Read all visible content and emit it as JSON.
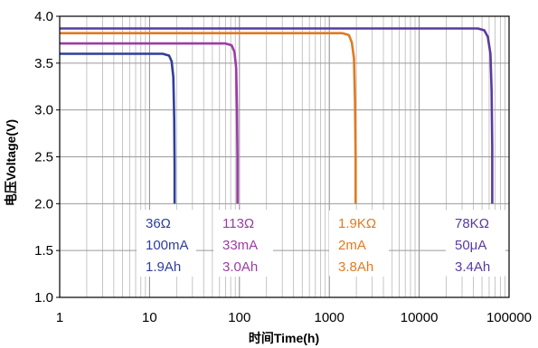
{
  "chart_data": {
    "type": "line",
    "title": "",
    "xlabel": "时间Time(h)",
    "ylabel": "电压Voltage(V)",
    "x_scale": "log",
    "xlim": [
      1,
      100000
    ],
    "ylim": [
      1.0,
      4.0
    ],
    "x_ticks": [
      1,
      10,
      100,
      1000,
      10000,
      100000
    ],
    "x_tick_labels": [
      "1",
      "10",
      "100",
      "1000",
      "10000",
      "100000"
    ],
    "y_ticks": [
      1.0,
      1.5,
      2.0,
      2.5,
      3.0,
      3.5,
      4.0
    ],
    "y_tick_labels": [
      "1.0",
      "1.5",
      "2.0",
      "2.5",
      "3.0",
      "3.5",
      "4.0"
    ],
    "grid": true,
    "series": [
      {
        "color": "#2e3e9c",
        "x": [
          1,
          14,
          16.5,
          17.6,
          18.4,
          18.8,
          19,
          19
        ],
        "y": [
          3.6,
          3.6,
          3.58,
          3.52,
          3.35,
          2.9,
          2.4,
          2.0
        ],
        "annotation": [
          "36Ω",
          "100mA",
          "1.9Ah"
        ]
      },
      {
        "color": "#9c3ba6",
        "x": [
          1,
          70,
          82,
          88,
          92,
          94,
          95,
          95
        ],
        "y": [
          3.71,
          3.71,
          3.69,
          3.62,
          3.45,
          3.0,
          2.5,
          2.0
        ],
        "annotation": [
          "113Ω",
          "33mA",
          "3.0Ah"
        ]
      },
      {
        "color": "#e07a22",
        "x": [
          1,
          1400,
          1650,
          1780,
          1880,
          1930,
          1960,
          1960
        ],
        "y": [
          3.82,
          3.82,
          3.8,
          3.72,
          3.55,
          3.1,
          2.5,
          2.0
        ],
        "annotation": [
          "1.9KΩ",
          "2mA",
          "3.8Ah"
        ]
      },
      {
        "color": "#5a3aa0",
        "x": [
          1,
          45000,
          53000,
          58000,
          62000,
          64000,
          65000,
          65000
        ],
        "y": [
          3.87,
          3.87,
          3.85,
          3.78,
          3.6,
          3.2,
          2.6,
          2.0
        ],
        "annotation": [
          "78KΩ",
          "50μA",
          "3.4Ah"
        ]
      }
    ]
  }
}
